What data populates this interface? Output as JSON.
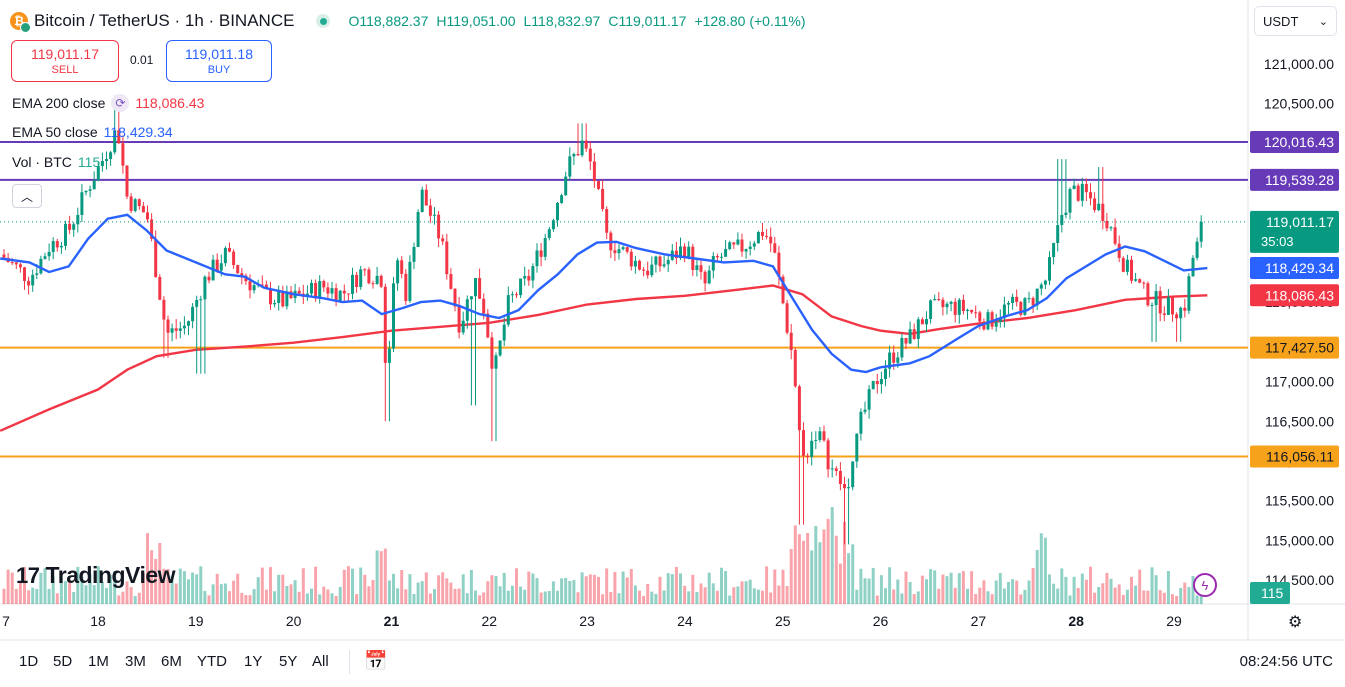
{
  "header": {
    "symbol": "Bitcoin / TetherUS · 1h · BINANCE",
    "open": "O118,882.37",
    "high": "H119,051.00",
    "low": "L118,832.97",
    "close": "C119,011.17",
    "change": "+128.80 (+0.11%)"
  },
  "trade": {
    "sell_price": "119,011.17",
    "sell_label": "SELL",
    "buy_price": "119,011.18",
    "buy_label": "BUY",
    "spread": "0.01"
  },
  "legend": {
    "ema200_label": "EMA 200 close",
    "ema200_value": "118,086.43",
    "ema50_label": "EMA 50 close",
    "ema50_value": "118,429.34",
    "vol_label": "Vol · BTC",
    "vol_value": "115"
  },
  "currency": "USDT",
  "brand": "TradingView",
  "timeframes": [
    "1D",
    "5D",
    "1M",
    "3M",
    "6M",
    "YTD",
    "1Y",
    "5Y",
    "All"
  ],
  "clock": "08:24:56 UTC",
  "colors": {
    "up": "#089981",
    "down": "#f23645",
    "ema50": "#2962ff",
    "ema200": "#f23645",
    "resistance": "#673ab7",
    "support": "#f7a21b"
  },
  "chart_data": {
    "type": "candlestick",
    "title": "Bitcoin / TetherUS · 1h · BINANCE",
    "ylim": [
      114200,
      121300
    ],
    "y_ticks": [
      "121,000.00",
      "120,500.00",
      "120,000.00",
      "119,500.00",
      "119,000.00",
      "118,500.00",
      "118,000.00",
      "117,500.00",
      "117,000.00",
      "116,500.00",
      "116,000.00",
      "115,500.00",
      "115,000.00",
      "114,500.00"
    ],
    "y_tick_values": [
      121000,
      120500,
      120000,
      119500,
      119000,
      118500,
      118000,
      117500,
      117000,
      116500,
      116000,
      115500,
      115000,
      114500
    ],
    "x_ticks": [
      "7",
      "18",
      "19",
      "20",
      "21",
      "22",
      "23",
      "24",
      "25",
      "26",
      "27",
      "28",
      "29"
    ],
    "x_tick_days": [
      17,
      18,
      19,
      20,
      21,
      22,
      23,
      24,
      25,
      26,
      27,
      28,
      29
    ],
    "x_bold": [
      "21",
      "28"
    ],
    "x_range_days": [
      17,
      29.34
    ],
    "horizontal_lines": [
      {
        "value": 120016.43,
        "label": "120,016.43",
        "color": "#673ab7"
      },
      {
        "value": 119539.28,
        "label": "119,539.28",
        "color": "#673ab7"
      },
      {
        "value": 117427.5,
        "label": "117,427.50",
        "color": "#f7a21b"
      },
      {
        "value": 116056.11,
        "label": "116,056.11",
        "color": "#f7a21b"
      }
    ],
    "last_price": {
      "value": 119011.17,
      "label": "119,011.17",
      "countdown": "35:03"
    },
    "ema50": {
      "name": "EMA 50 close",
      "value_label": "118,429.34",
      "points": [
        [
          17,
          118550
        ],
        [
          17.3,
          118500
        ],
        [
          17.5,
          118380
        ],
        [
          17.7,
          118450
        ],
        [
          17.9,
          118800
        ],
        [
          18.1,
          119050
        ],
        [
          18.3,
          119100
        ],
        [
          18.5,
          118900
        ],
        [
          18.7,
          118650
        ],
        [
          19,
          118500
        ],
        [
          19.3,
          118350
        ],
        [
          19.5,
          118320
        ],
        [
          19.7,
          118180
        ],
        [
          20,
          118100
        ],
        [
          20.3,
          118050
        ],
        [
          20.5,
          118000
        ],
        [
          20.7,
          118020
        ],
        [
          20.9,
          117850
        ],
        [
          21.1,
          117920
        ],
        [
          21.3,
          118000
        ],
        [
          21.5,
          118020
        ],
        [
          21.7,
          117950
        ],
        [
          21.9,
          117850
        ],
        [
          22.1,
          117800
        ],
        [
          22.3,
          117900
        ],
        [
          22.5,
          118150
        ],
        [
          22.7,
          118350
        ],
        [
          22.9,
          118600
        ],
        [
          23.1,
          118750
        ],
        [
          23.3,
          118760
        ],
        [
          23.5,
          118680
        ],
        [
          23.8,
          118600
        ],
        [
          24.1,
          118550
        ],
        [
          24.4,
          118500
        ],
        [
          24.7,
          118520
        ],
        [
          24.9,
          118450
        ],
        [
          25.1,
          118050
        ],
        [
          25.3,
          117650
        ],
        [
          25.5,
          117350
        ],
        [
          25.7,
          117150
        ],
        [
          25.85,
          117120
        ],
        [
          26,
          117180
        ],
        [
          26.3,
          117230
        ],
        [
          26.5,
          117320
        ],
        [
          26.8,
          117550
        ],
        [
          27,
          117700
        ],
        [
          27.3,
          117830
        ],
        [
          27.5,
          117900
        ],
        [
          27.7,
          118050
        ],
        [
          27.9,
          118300
        ],
        [
          28.1,
          118450
        ],
        [
          28.3,
          118600
        ],
        [
          28.5,
          118700
        ],
        [
          28.7,
          118640
        ],
        [
          28.9,
          118520
        ],
        [
          29.1,
          118400
        ],
        [
          29.34,
          118429
        ]
      ]
    },
    "ema200": {
      "name": "EMA 200 close",
      "value_label": "118,086.43",
      "points": [
        [
          17,
          116380
        ],
        [
          17.5,
          116650
        ],
        [
          18,
          116900
        ],
        [
          18.3,
          117150
        ],
        [
          18.6,
          117320
        ],
        [
          19,
          117400
        ],
        [
          19.5,
          117440
        ],
        [
          20,
          117490
        ],
        [
          20.5,
          117560
        ],
        [
          21,
          117640
        ],
        [
          21.5,
          117690
        ],
        [
          22,
          117740
        ],
        [
          22.5,
          117840
        ],
        [
          23,
          117970
        ],
        [
          23.5,
          118040
        ],
        [
          24,
          118080
        ],
        [
          24.5,
          118150
        ],
        [
          24.9,
          118210
        ],
        [
          25.2,
          118100
        ],
        [
          25.5,
          117820
        ],
        [
          25.8,
          117700
        ],
        [
          26,
          117640
        ],
        [
          26.3,
          117600
        ],
        [
          26.6,
          117660
        ],
        [
          27,
          117730
        ],
        [
          27.5,
          117800
        ],
        [
          28,
          117900
        ],
        [
          28.5,
          118030
        ],
        [
          29,
          118070
        ],
        [
          29.34,
          118086
        ]
      ]
    },
    "price_path": [
      [
        17,
        118600
      ],
      [
        17.3,
        118300
      ],
      [
        17.5,
        118700
      ],
      [
        17.7,
        118900
      ],
      [
        17.9,
        119450
      ],
      [
        18.05,
        119800
      ],
      [
        18.2,
        120200
      ],
      [
        18.3,
        119300
      ],
      [
        18.5,
        119100
      ],
      [
        18.7,
        117600
      ],
      [
        18.9,
        117700
      ],
      [
        19.1,
        118300
      ],
      [
        19.3,
        118600
      ],
      [
        19.5,
        118300
      ],
      [
        19.7,
        118100
      ],
      [
        19.9,
        118000
      ],
      [
        20.1,
        118100
      ],
      [
        20.3,
        118200
      ],
      [
        20.5,
        118100
      ],
      [
        20.7,
        118400
      ],
      [
        20.9,
        118300
      ],
      [
        20.95,
        117000
      ],
      [
        21.05,
        118600
      ],
      [
        21.15,
        118100
      ],
      [
        21.3,
        119400
      ],
      [
        21.5,
        118800
      ],
      [
        21.7,
        117700
      ],
      [
        21.85,
        118300
      ],
      [
        21.95,
        117900
      ],
      [
        22.05,
        117100
      ],
      [
        22.2,
        118000
      ],
      [
        22.4,
        118300
      ],
      [
        22.6,
        118900
      ],
      [
        22.8,
        119700
      ],
      [
        22.95,
        120000
      ],
      [
        23.05,
        119700
      ],
      [
        23.2,
        118800
      ],
      [
        23.4,
        118600
      ],
      [
        23.6,
        118400
      ],
      [
        23.8,
        118500
      ],
      [
        24.0,
        118700
      ],
      [
        24.2,
        118200
      ],
      [
        24.3,
        118500
      ],
      [
        24.4,
        118600
      ],
      [
        24.6,
        118700
      ],
      [
        24.8,
        118900
      ],
      [
        24.9,
        118700
      ],
      [
        25.1,
        117300
      ],
      [
        25.2,
        116000
      ],
      [
        25.35,
        116400
      ],
      [
        25.5,
        115900
      ],
      [
        25.65,
        115600
      ],
      [
        25.8,
        116500
      ],
      [
        25.95,
        117000
      ],
      [
        26.1,
        117300
      ],
      [
        26.3,
        117550
      ],
      [
        26.5,
        117900
      ],
      [
        26.7,
        117950
      ],
      [
        26.9,
        117900
      ],
      [
        27.1,
        117750
      ],
      [
        27.3,
        117950
      ],
      [
        27.5,
        117950
      ],
      [
        27.7,
        118300
      ],
      [
        27.85,
        119100
      ],
      [
        27.95,
        119400
      ],
      [
        28.1,
        119350
      ],
      [
        28.3,
        119100
      ],
      [
        28.5,
        118450
      ],
      [
        28.7,
        118100
      ],
      [
        28.9,
        117950
      ],
      [
        29.1,
        117900
      ],
      [
        29.2,
        118600
      ],
      [
        29.34,
        119011
      ]
    ],
    "price_lows": [
      [
        18.7,
        117300
      ],
      [
        19.05,
        117100
      ],
      [
        20.95,
        116500
      ],
      [
        21.85,
        116700
      ],
      [
        22.05,
        116250
      ],
      [
        25.2,
        115200
      ],
      [
        25.65,
        114950
      ],
      [
        26.0,
        116850
      ],
      [
        28.8,
        117500
      ],
      [
        29.05,
        117500
      ]
    ],
    "price_highs": [
      [
        18.2,
        120600
      ],
      [
        22.95,
        120250
      ],
      [
        27.85,
        119800
      ],
      [
        28.25,
        119700
      ]
    ]
  }
}
